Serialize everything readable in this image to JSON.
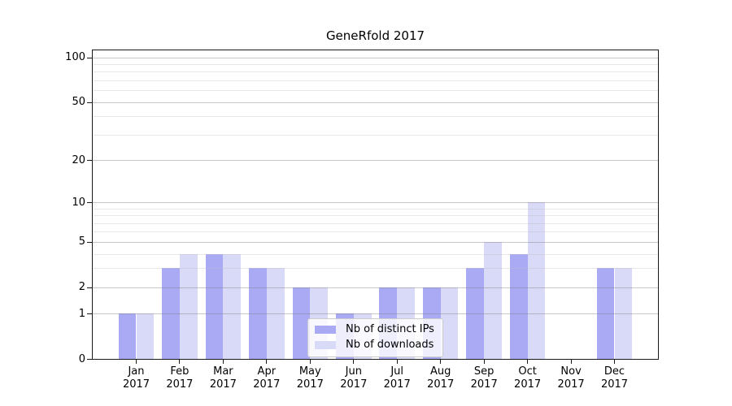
{
  "chart_data": {
    "type": "bar",
    "title": "GeneRfold 2017",
    "categories": [
      "Jan",
      "Feb",
      "Mar",
      "Apr",
      "May",
      "Jun",
      "Jul",
      "Aug",
      "Sep",
      "Oct",
      "Nov",
      "Dec"
    ],
    "year": "2017",
    "series": [
      {
        "name": "Nb of distinct IPs",
        "color": "#a9a9f4",
        "values": [
          1,
          3,
          4,
          3,
          2,
          1,
          2,
          2,
          3,
          4,
          0,
          3
        ]
      },
      {
        "name": "Nb of downloads",
        "color": "#d9d9f8",
        "values": [
          1,
          4,
          4,
          3,
          2,
          1,
          2,
          2,
          5,
          10,
          0,
          3
        ]
      }
    ],
    "xlabel": "",
    "ylabel": "",
    "yscale": "log1p",
    "yticks": [
      0,
      1,
      2,
      5,
      10,
      20,
      50,
      100
    ],
    "yticks_minor": [
      3,
      4,
      6,
      7,
      8,
      9,
      30,
      40,
      60,
      70,
      80,
      90
    ],
    "ylim": [
      0,
      112
    ],
    "grid": true,
    "legend_position": "lower center"
  }
}
